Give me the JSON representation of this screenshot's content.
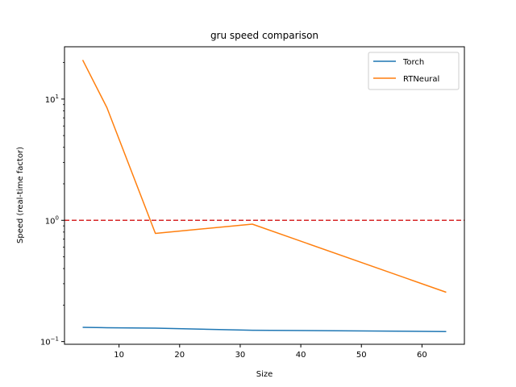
{
  "chart_data": {
    "type": "line",
    "title": "gru speed comparison",
    "xlabel": "Size",
    "ylabel": "Speed (real-time factor)",
    "yscale": "log",
    "xlim": [
      1.0,
      67.0
    ],
    "ylim": [
      0.095,
      27.0
    ],
    "x_ticks": [
      10,
      20,
      30,
      40,
      50,
      60
    ],
    "y_ticks": [
      {
        "value": 0.1,
        "base": "10",
        "exp": "−1"
      },
      {
        "value": 1,
        "base": "10",
        "exp": "0"
      },
      {
        "value": 10,
        "base": "10",
        "exp": "1"
      }
    ],
    "x": [
      4,
      8,
      16,
      32,
      64
    ],
    "series": [
      {
        "name": "Torch",
        "color": "#1f77b4",
        "values": [
          0.131,
          0.13,
          0.129,
          0.124,
          0.121
        ]
      },
      {
        "name": "RTNeural",
        "color": "#ff7f0e",
        "values": [
          21.0,
          8.5,
          0.78,
          0.93,
          0.255
        ]
      }
    ],
    "reference_line": {
      "value": 1.0,
      "color": "#d62728",
      "style": "dashed"
    },
    "legend": {
      "placement": "top-right"
    },
    "grid": false
  }
}
